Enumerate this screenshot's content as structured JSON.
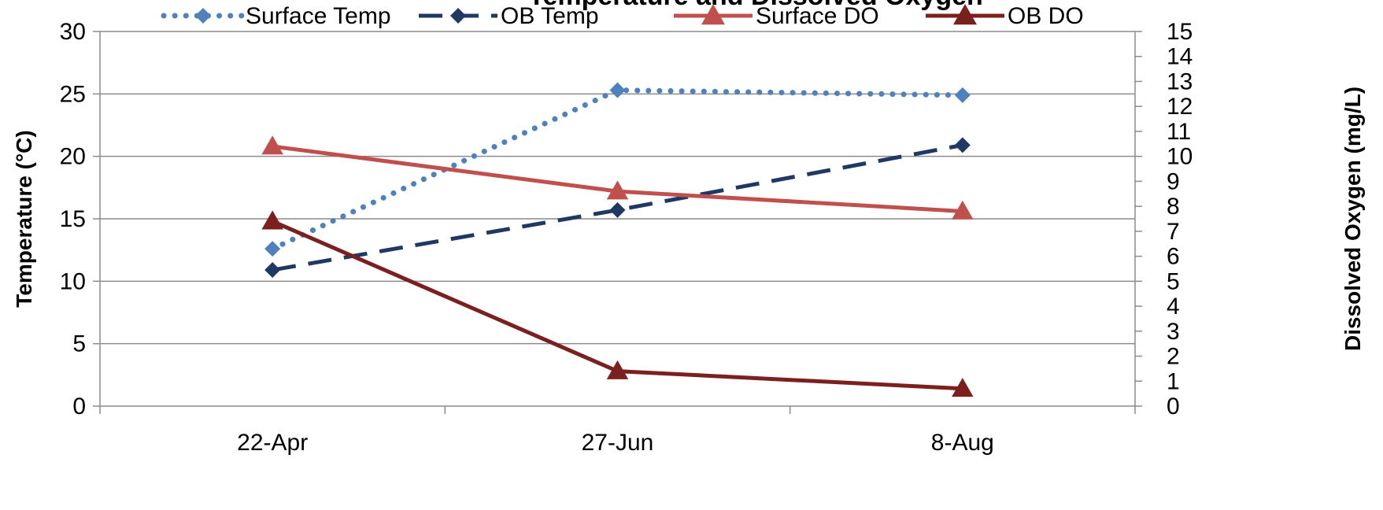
{
  "chart_data": {
    "type": "line",
    "title": "Temperature and Dissolved Oxygen",
    "categories": [
      "22-Apr",
      "27-Jun",
      "8-Aug"
    ],
    "ylabel": "Temperature (°C)",
    "y2label": "Dissolved Oxygen (mg/L)",
    "ylim": [
      0,
      30
    ],
    "y2lim": [
      0,
      15
    ],
    "yticks": [
      "0",
      "5",
      "10",
      "15",
      "20",
      "25",
      "30"
    ],
    "y2ticks": [
      "0",
      "1",
      "2",
      "3",
      "4",
      "5",
      "6",
      "7",
      "8",
      "9",
      "10",
      "11",
      "12",
      "13",
      "14",
      "15"
    ],
    "grid": true,
    "legend_position": "top",
    "series": [
      {
        "name": "Surface Temp",
        "axis": "left",
        "values": [
          12.6,
          25.3,
          24.9
        ],
        "color": "#4F81BD",
        "style": "dotted",
        "marker": "diamond"
      },
      {
        "name": "OB  Temp",
        "axis": "left",
        "values": [
          10.9,
          15.7,
          20.9
        ],
        "color": "#1F3864",
        "style": "dashed",
        "marker": "diamond"
      },
      {
        "name": "Surface DO",
        "axis": "right",
        "values": [
          10.4,
          8.6,
          7.8
        ],
        "color": "#C0504D",
        "style": "solid",
        "marker": "triangle"
      },
      {
        "name": "OB DO",
        "axis": "right",
        "values": [
          7.4,
          1.4,
          0.7
        ],
        "color": "#7B1F1F",
        "style": "solid",
        "marker": "triangle"
      }
    ]
  }
}
